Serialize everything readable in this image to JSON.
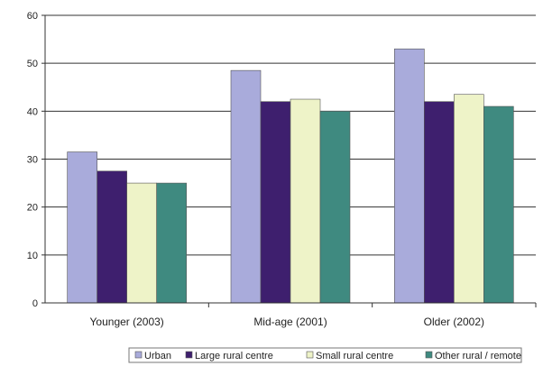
{
  "chart_data": {
    "type": "bar",
    "categories": [
      "Younger (2003)",
      "Mid-age (2001)",
      "Older (2002)"
    ],
    "series": [
      {
        "name": "Urban",
        "values": [
          31.5,
          48.5,
          53
        ],
        "color": "#a9abdb"
      },
      {
        "name": "Large rural centre",
        "values": [
          27.5,
          42,
          42
        ],
        "color": "#3e1f6e"
      },
      {
        "name": "Small rural centre",
        "values": [
          25,
          42.5,
          43.5
        ],
        "color": "#eef3c8"
      },
      {
        "name": "Other rural / remote",
        "values": [
          25,
          40,
          41
        ],
        "color": "#3f8a80"
      }
    ],
    "ylim": [
      0,
      60
    ],
    "yticks": [
      0,
      10,
      20,
      30,
      40,
      50,
      60
    ],
    "grid": true,
    "legend_position": "bottom"
  }
}
